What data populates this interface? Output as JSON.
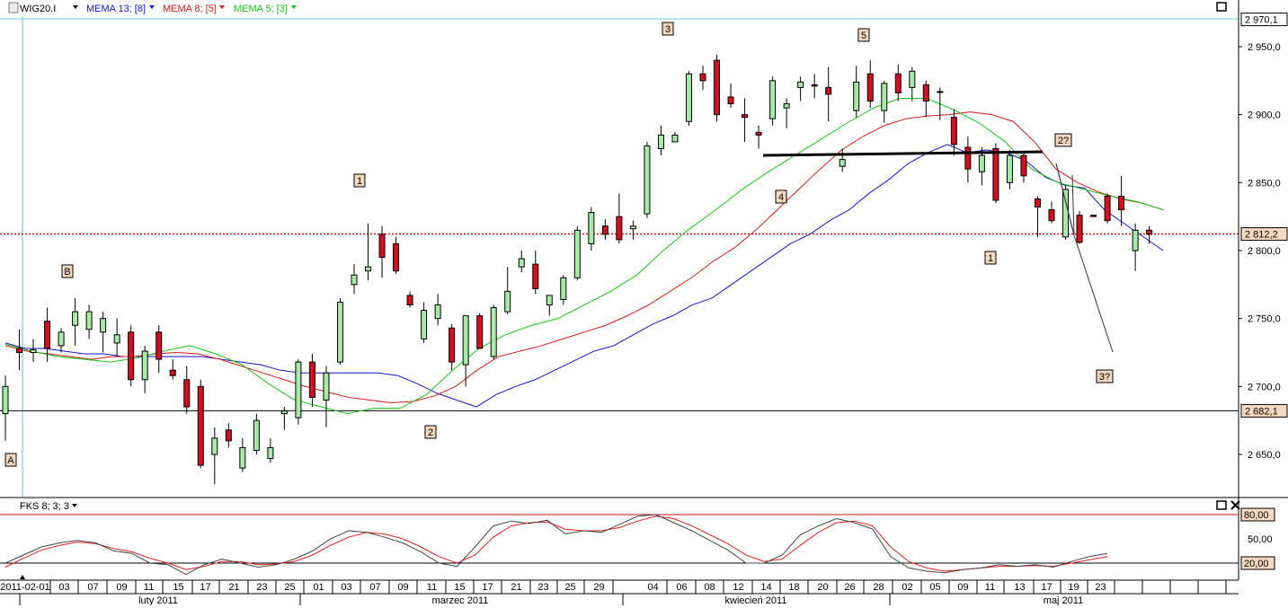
{
  "header": {
    "symbol": "WIG20.I",
    "indicators": [
      {
        "label": "MEMA 13; [8]",
        "color": "#1515c8"
      },
      {
        "label": "MEMA 8; [5]",
        "color": "#d81818"
      },
      {
        "label": "MEMA 5; [3]",
        "color": "#16c616"
      }
    ],
    "lower_indicator": "FKS 8; 3; 3"
  },
  "price_axis": {
    "ticks": [
      "2 950,0",
      "2 900,0",
      "2 850,0",
      "2 800,0",
      "2 750,0",
      "2 700,0",
      "2 650,0"
    ],
    "tick_values": [
      2950,
      2900,
      2850,
      2800,
      2750,
      2700,
      2650
    ],
    "markers": [
      {
        "label": "2 970,1",
        "value": 2970.1
      },
      {
        "label": "2 812,2",
        "value": 2812.2
      },
      {
        "label": "2 682,1",
        "value": 2682.1
      }
    ]
  },
  "osc_axis": {
    "ticks": [
      "50,00"
    ],
    "markers": [
      {
        "label": "80,00",
        "value": 80
      },
      {
        "label": "20,00",
        "value": 20
      }
    ]
  },
  "date_axis": {
    "days": [
      "2011-02-01",
      "03",
      "07",
      "09",
      "11",
      "15",
      "17",
      "21",
      "23",
      "25",
      "01",
      "03",
      "07",
      "09",
      "11",
      "15",
      "17",
      "21",
      "23",
      "25",
      "29",
      "04",
      "06",
      "08",
      "12",
      "14",
      "18",
      "20",
      "26",
      "28",
      "02",
      "05",
      "09",
      "11",
      "13",
      "17",
      "19",
      "23"
    ],
    "months": [
      {
        "label": "luty 2011"
      },
      {
        "label": "marzec 2011"
      },
      {
        "label": "kwiecień 2011"
      },
      {
        "label": "maj 2011"
      }
    ]
  },
  "wave_labels": [
    "A",
    "B",
    "1",
    "2",
    "3",
    "4",
    "5",
    "1",
    "2?",
    "3?"
  ],
  "chart_data": {
    "type": "candlestick",
    "candles": [
      [
        2680,
        2708,
        2660,
        2700
      ],
      [
        2728,
        2742,
        2712,
        2725
      ],
      [
        2725,
        2735,
        2718,
        2727
      ],
      [
        2748,
        2758,
        2718,
        2728
      ],
      [
        2730,
        2743,
        2725,
        2740
      ],
      [
        2745,
        2765,
        2730,
        2755
      ],
      [
        2742,
        2760,
        2735,
        2755
      ],
      [
        2740,
        2755,
        2725,
        2750
      ],
      [
        2732,
        2750,
        2722,
        2738
      ],
      [
        2740,
        2745,
        2700,
        2705
      ],
      [
        2705,
        2730,
        2695,
        2726
      ],
      [
        2740,
        2745,
        2710,
        2720
      ],
      [
        2712,
        2720,
        2705,
        2708
      ],
      [
        2705,
        2715,
        2680,
        2685
      ],
      [
        2700,
        2705,
        2640,
        2642
      ],
      [
        2650,
        2670,
        2628,
        2662
      ],
      [
        2668,
        2673,
        2655,
        2660
      ],
      [
        2640,
        2662,
        2637,
        2655
      ],
      [
        2653,
        2680,
        2650,
        2675
      ],
      [
        2647,
        2662,
        2644,
        2655
      ],
      [
        2680,
        2685,
        2668,
        2682
      ],
      [
        2677,
        2720,
        2672,
        2718
      ],
      [
        2718,
        2724,
        2685,
        2692
      ],
      [
        2690,
        2715,
        2670,
        2710
      ],
      [
        2718,
        2765,
        2716,
        2762
      ],
      [
        2775,
        2790,
        2768,
        2782
      ],
      [
        2785,
        2820,
        2778,
        2788
      ],
      [
        2812,
        2818,
        2780,
        2795
      ],
      [
        2805,
        2810,
        2783,
        2785
      ],
      [
        2767,
        2770,
        2758,
        2760
      ],
      [
        2735,
        2762,
        2732,
        2756
      ],
      [
        2750,
        2768,
        2745,
        2760
      ],
      [
        2743,
        2746,
        2712,
        2718
      ],
      [
        2716,
        2752,
        2700,
        2752
      ],
      [
        2752,
        2754,
        2728,
        2728
      ],
      [
        2722,
        2760,
        2720,
        2758
      ],
      [
        2755,
        2788,
        2753,
        2770
      ],
      [
        2788,
        2800,
        2784,
        2794
      ],
      [
        2790,
        2800,
        2768,
        2772
      ],
      [
        2760,
        2767,
        2752,
        2767
      ],
      [
        2764,
        2782,
        2760,
        2780
      ],
      [
        2780,
        2818,
        2778,
        2815
      ],
      [
        2805,
        2832,
        2800,
        2828
      ],
      [
        2818,
        2823,
        2808,
        2812
      ],
      [
        2825,
        2842,
        2805,
        2808
      ],
      [
        2816,
        2822,
        2808,
        2818
      ],
      [
        2827,
        2880,
        2824,
        2877
      ],
      [
        2875,
        2892,
        2870,
        2885
      ],
      [
        2880,
        2887,
        2880,
        2885
      ],
      [
        2895,
        2932,
        2892,
        2930
      ],
      [
        2930,
        2936,
        2918,
        2925
      ],
      [
        2940,
        2944,
        2895,
        2900
      ],
      [
        2913,
        2923,
        2905,
        2908
      ],
      [
        2900,
        2912,
        2880,
        2898
      ],
      [
        2887,
        2892,
        2875,
        2885
      ],
      [
        2897,
        2928,
        2892,
        2925
      ],
      [
        2905,
        2912,
        2890,
        2908
      ],
      [
        2920,
        2928,
        2910,
        2924
      ],
      [
        2922,
        2930,
        2912,
        2921
      ],
      [
        2920,
        2935,
        2895,
        2915
      ],
      [
        2862,
        2875,
        2858,
        2867
      ],
      [
        2903,
        2936,
        2898,
        2924
      ],
      [
        2930,
        2940,
        2905,
        2910
      ],
      [
        2903,
        2925,
        2894,
        2923
      ],
      [
        2930,
        2937,
        2910,
        2916
      ],
      [
        2920,
        2935,
        2910,
        2932
      ],
      [
        2922,
        2925,
        2898,
        2910
      ],
      [
        2917,
        2920,
        2896,
        2917
      ],
      [
        2898,
        2904,
        2870,
        2878
      ],
      [
        2876,
        2884,
        2850,
        2860
      ],
      [
        2858,
        2876,
        2848,
        2870
      ],
      [
        2875,
        2879,
        2835,
        2837
      ],
      [
        2850,
        2874,
        2845,
        2870
      ],
      [
        2870,
        2872,
        2850,
        2855
      ],
      [
        2838,
        2840,
        2810,
        2832
      ],
      [
        2830,
        2836,
        2820,
        2822
      ],
      [
        2810,
        2848,
        2808,
        2845
      ],
      [
        2826,
        2829,
        2805,
        2806
      ],
      [
        2826,
        2826,
        2825,
        2825
      ],
      [
        2840,
        2842,
        2820,
        2822
      ],
      [
        2840,
        2855,
        2818,
        2830
      ],
      [
        2800,
        2820,
        2785,
        2815
      ],
      [
        2815,
        2818,
        2805,
        2812
      ]
    ],
    "mema13_close": [
      2732,
      2728,
      2728,
      2726,
      2724,
      2724,
      2722,
      2722,
      2722,
      2722,
      2722,
      2720,
      2718,
      2716,
      2712,
      2710,
      2710,
      2710,
      2710,
      2710,
      2708,
      2702,
      2695,
      2690,
      2685,
      2694,
      2700,
      2705,
      2712,
      2719,
      2726,
      2730,
      2738,
      2746,
      2752,
      2760,
      2765,
      2775,
      2785,
      2795,
      2805,
      2812,
      2822,
      2830,
      2842,
      2852,
      2864,
      2872,
      2878,
      2872,
      2874,
      2872,
      2866,
      2854,
      2848,
      2846,
      2830,
      2820,
      2810,
      2800
    ],
    "mema8_close": [
      2730,
      2726,
      2724,
      2722,
      2720,
      2722,
      2722,
      2724,
      2725,
      2724,
      2720,
      2715,
      2710,
      2705,
      2700,
      2696,
      2692,
      2690,
      2688,
      2689,
      2693,
      2700,
      2712,
      2722,
      2726,
      2730,
      2735,
      2740,
      2745,
      2752,
      2760,
      2770,
      2780,
      2792,
      2802,
      2815,
      2830,
      2845,
      2860,
      2874,
      2884,
      2892,
      2897,
      2899,
      2900,
      2902,
      2900,
      2895,
      2880,
      2860,
      2850,
      2843,
      2838,
      2835,
      2830
    ],
    "mema5_close": [
      2731,
      2726,
      2722,
      2720,
      2718,
      2721,
      2726,
      2730,
      2724,
      2716,
      2702,
      2690,
      2685,
      2680,
      2684,
      2684,
      2694,
      2712,
      2728,
      2738,
      2745,
      2750,
      2760,
      2770,
      2782,
      2800,
      2816,
      2830,
      2845,
      2858,
      2870,
      2882,
      2894,
      2905,
      2912,
      2912,
      2904,
      2894,
      2880,
      2860,
      2850,
      2845,
      2840,
      2836,
      2830
    ],
    "fks_k": [
      20,
      30,
      40,
      45,
      48,
      45,
      35,
      32,
      20,
      18,
      6,
      18,
      25,
      20,
      15,
      18,
      25,
      35,
      50,
      60,
      58,
      52,
      45,
      34,
      20,
      16,
      40,
      66,
      72,
      69,
      73,
      56,
      60,
      58,
      68,
      78,
      80,
      70,
      60,
      48,
      36,
      20,
      20,
      30,
      55,
      66,
      75,
      70,
      62,
      28,
      14,
      10,
      8,
      12,
      14,
      18,
      16,
      18,
      15,
      22,
      28,
      32
    ],
    "fks_d": [
      15,
      26,
      36,
      42,
      46,
      44,
      38,
      34,
      26,
      20,
      12,
      16,
      22,
      22,
      18,
      19,
      22,
      30,
      42,
      52,
      58,
      56,
      50,
      40,
      28,
      20,
      30,
      52,
      66,
      70,
      71,
      62,
      60,
      60,
      64,
      72,
      78,
      75,
      66,
      55,
      44,
      30,
      22,
      25,
      42,
      58,
      70,
      72,
      66,
      40,
      22,
      14,
      10,
      12,
      14,
      16,
      16,
      17,
      16,
      20,
      24,
      28
    ]
  }
}
